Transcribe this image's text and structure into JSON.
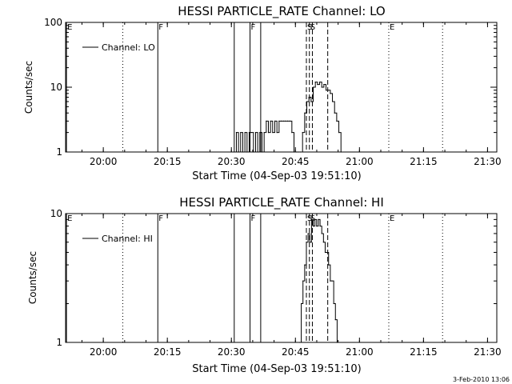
{
  "footer_stamp": "3-Feb-2010 13:06",
  "chart_data": [
    {
      "type": "line",
      "title": "HESSI PARTICLE_RATE Channel: LO",
      "xlabel": "Start Time (04-Sep-03 19:51:10)",
      "ylabel": "Counts/sec",
      "x_unit": "minutes since 19:51:10",
      "xlim": [
        0,
        101
      ],
      "ylim": [
        1,
        100
      ],
      "yscale": "log",
      "x_ticks": [
        {
          "label": "20:00",
          "x": 8.83
        },
        {
          "label": "20:15",
          "x": 23.83
        },
        {
          "label": "20:30",
          "x": 38.83
        },
        {
          "label": "20:45",
          "x": 53.83
        },
        {
          "label": "21:00",
          "x": 68.83
        },
        {
          "label": "21:15",
          "x": 83.83
        },
        {
          "label": "21:30",
          "x": 98.83
        }
      ],
      "y_ticks": [
        {
          "label": "1",
          "value": 1
        },
        {
          "label": "10",
          "value": 10
        },
        {
          "label": "100",
          "value": 100
        }
      ],
      "legend": {
        "position": "top-left",
        "entries": [
          "Channel: LO"
        ]
      },
      "event_markers": [
        {
          "x": 0.2,
          "style": "solid",
          "label": "E"
        },
        {
          "x": 13.4,
          "style": "dotted",
          "label": ""
        },
        {
          "x": 21.6,
          "style": "solid",
          "label": "F"
        },
        {
          "x": 39.5,
          "style": "solid",
          "label": ""
        },
        {
          "x": 43.2,
          "style": "solid",
          "label": "F"
        },
        {
          "x": 45.7,
          "style": "solid",
          "label": ""
        },
        {
          "x": 56.4,
          "style": "dashed",
          "label": "S"
        },
        {
          "x": 57.1,
          "style": "dashed",
          "label": "S"
        },
        {
          "x": 57.8,
          "style": "dashed",
          "label": ""
        },
        {
          "x": 61.4,
          "style": "dashed",
          "label": ""
        },
        {
          "x": 75.7,
          "style": "dotted",
          "label": "E"
        },
        {
          "x": 88.3,
          "style": "dotted",
          "label": ""
        }
      ],
      "series": [
        {
          "name": "Channel: LO",
          "x": [
            39.5,
            40.0,
            40.5,
            41.0,
            41.5,
            42.0,
            42.5,
            43.0,
            43.5,
            44.0,
            44.5,
            45.0,
            45.5,
            46.0,
            46.5,
            47.0,
            47.5,
            48.0,
            48.5,
            49.0,
            49.5,
            50.0,
            50.5,
            51.0,
            51.5,
            52.0,
            52.5,
            53.0,
            53.5,
            54.0,
            54.5,
            55.0,
            55.5,
            56.0,
            56.5,
            57.0,
            57.5,
            58.0,
            58.5,
            59.0,
            59.5,
            60.0,
            60.5,
            61.0,
            61.5,
            62.0,
            62.5,
            63.0,
            63.5,
            64.0,
            64.5
          ],
          "y": [
            1,
            2,
            1,
            2,
            1,
            2,
            1,
            2,
            2,
            1,
            2,
            1,
            2,
            1,
            2,
            3,
            2,
            3,
            2,
            3,
            2,
            3,
            3,
            3,
            3,
            3,
            3,
            2,
            1,
            1,
            1,
            1,
            2,
            4,
            6,
            7,
            6,
            10,
            12,
            11,
            12,
            10,
            11,
            9,
            9,
            8,
            6,
            4,
            3,
            2,
            1
          ]
        }
      ]
    },
    {
      "type": "line",
      "title": "HESSI PARTICLE_RATE Channel: HI",
      "xlabel": "Start Time (04-Sep-03 19:51:10)",
      "ylabel": "Counts/sec",
      "x_unit": "minutes since 19:51:10",
      "xlim": [
        0,
        101
      ],
      "ylim": [
        1,
        10
      ],
      "yscale": "log",
      "x_ticks": [
        {
          "label": "20:00",
          "x": 8.83
        },
        {
          "label": "20:15",
          "x": 23.83
        },
        {
          "label": "20:30",
          "x": 38.83
        },
        {
          "label": "20:45",
          "x": 53.83
        },
        {
          "label": "21:00",
          "x": 68.83
        },
        {
          "label": "21:15",
          "x": 83.83
        },
        {
          "label": "21:30",
          "x": 98.83
        }
      ],
      "y_ticks": [
        {
          "label": "1",
          "value": 1
        },
        {
          "label": "10",
          "value": 10
        }
      ],
      "legend": {
        "position": "top-left",
        "entries": [
          "Channel: HI"
        ]
      },
      "event_markers": [
        {
          "x": 0.2,
          "style": "solid",
          "label": "E"
        },
        {
          "x": 13.4,
          "style": "dotted",
          "label": ""
        },
        {
          "x": 21.6,
          "style": "solid",
          "label": "F"
        },
        {
          "x": 39.5,
          "style": "solid",
          "label": ""
        },
        {
          "x": 43.2,
          "style": "solid",
          "label": "F"
        },
        {
          "x": 45.7,
          "style": "solid",
          "label": ""
        },
        {
          "x": 56.4,
          "style": "dashed",
          "label": "S"
        },
        {
          "x": 57.1,
          "style": "dashed",
          "label": "S"
        },
        {
          "x": 57.8,
          "style": "dashed",
          "label": ""
        },
        {
          "x": 61.4,
          "style": "dashed",
          "label": ""
        },
        {
          "x": 75.7,
          "style": "dotted",
          "label": "E"
        },
        {
          "x": 88.3,
          "style": "dotted",
          "label": ""
        }
      ],
      "series": [
        {
          "name": "Channel: HI",
          "x": [
            54.8,
            55.2,
            55.6,
            56.0,
            56.4,
            56.8,
            57.2,
            57.6,
            58.0,
            58.4,
            58.8,
            59.2,
            59.6,
            60.0,
            60.4,
            60.8,
            61.2,
            61.6,
            62.0,
            62.4,
            62.8,
            63.2,
            63.6
          ],
          "y": [
            1,
            2,
            3,
            4,
            6,
            7,
            6,
            9,
            8,
            9,
            8,
            9,
            8,
            7,
            6,
            5,
            5,
            4,
            3,
            3,
            2,
            1.5,
            1
          ]
        }
      ]
    }
  ]
}
